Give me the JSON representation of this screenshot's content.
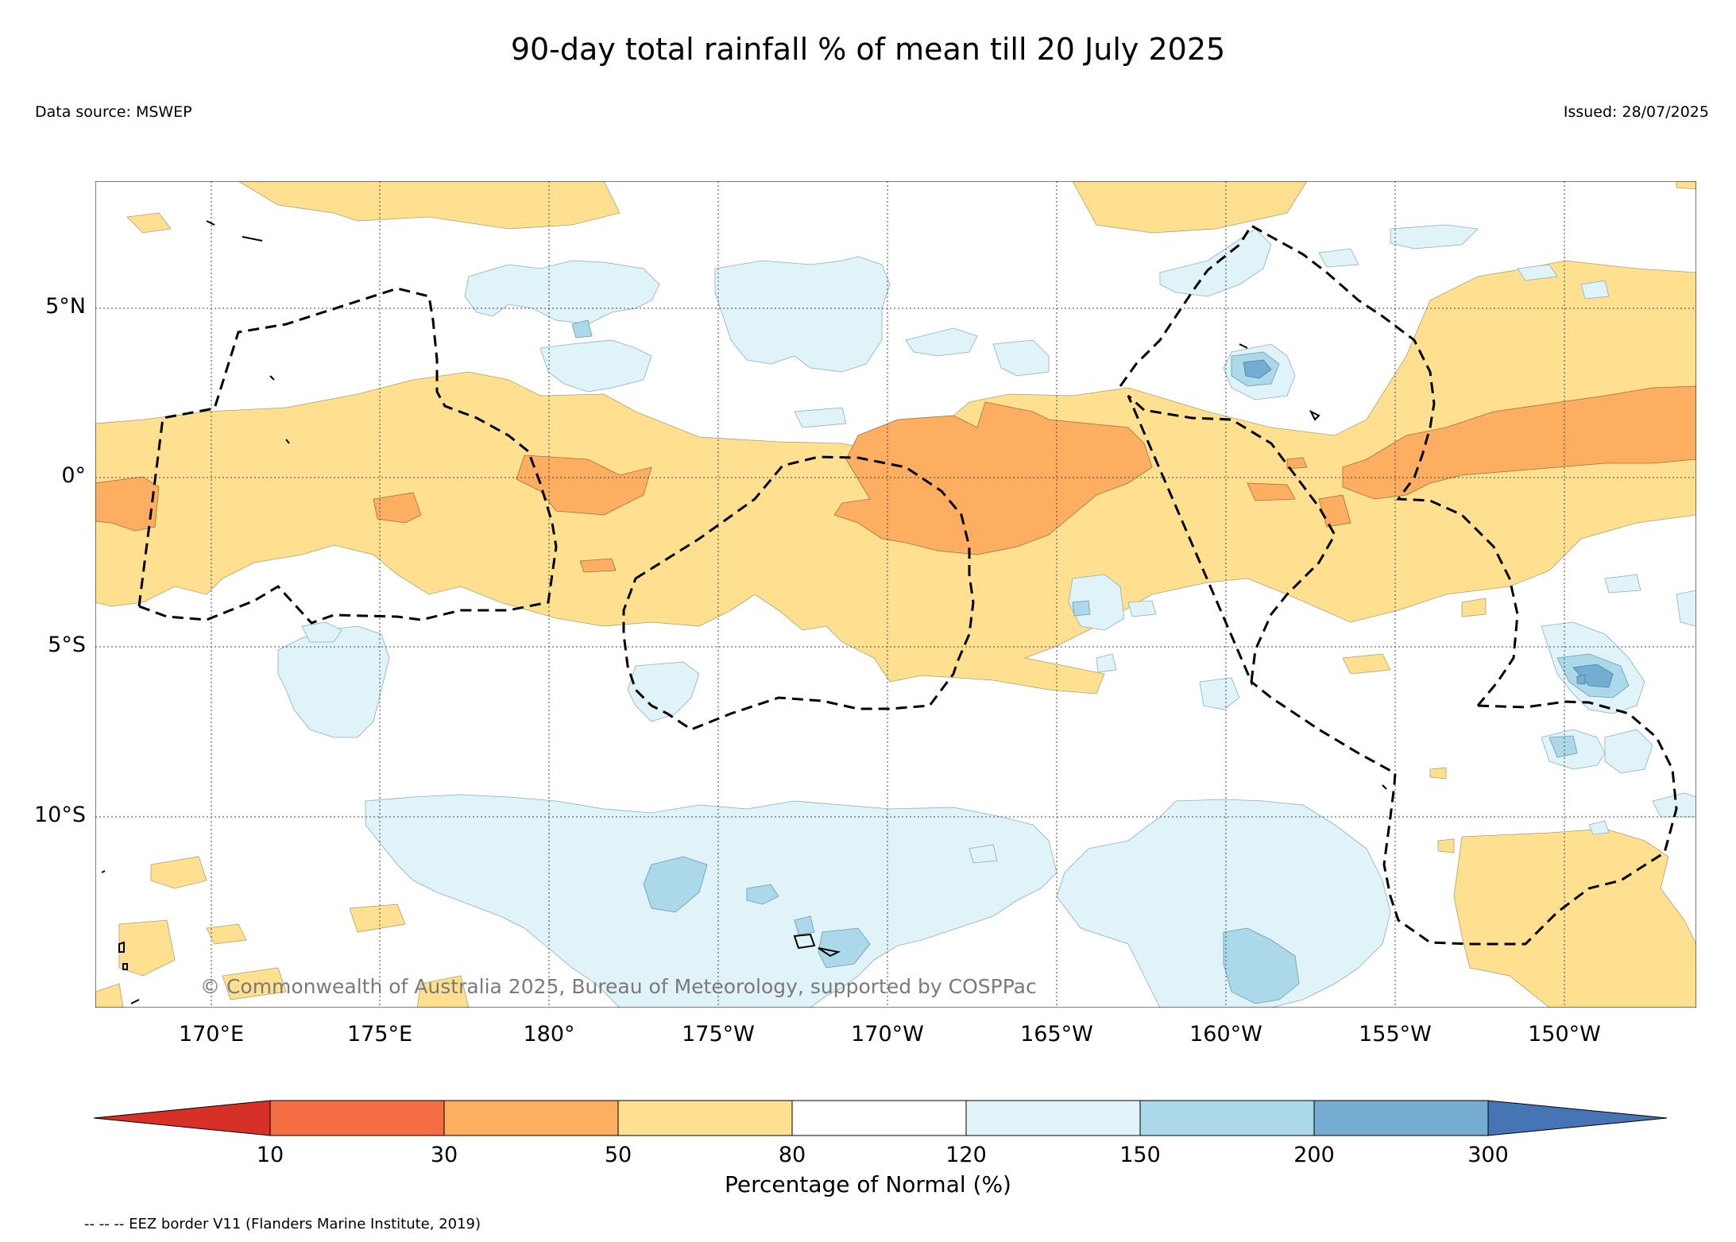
{
  "title": "90-day total rainfall % of mean till 20 July 2025",
  "data_source": "Data source: MSWEP",
  "issued": "Issued: 28/07/2025",
  "copyright": "© Commonwealth of Australia 2025, Bureau of Meteorology, supported by COSPPac",
  "eez_note": "-- -- -- EEZ border V11 (Flanders Marine Institute, 2019)",
  "map": {
    "lat_labels": [
      "5°N",
      "0°",
      "5°S",
      "10°S"
    ],
    "lon_labels": [
      "170°E",
      "175°E",
      "180°",
      "175°W",
      "170°W",
      "165°W",
      "160°W",
      "155°W",
      "150°W"
    ],
    "grid": true
  },
  "colorbar": {
    "label": "Percentage of Normal (%)",
    "ticks": [
      "10",
      "30",
      "50",
      "80",
      "120",
      "150",
      "200",
      "300"
    ],
    "colors": {
      "lt10": "#d73027",
      "10-30": "#f46d43",
      "30-50": "#fdae61",
      "50-80": "#fee090",
      "80-120": "#ffffff",
      "120-150": "#e0f3f8",
      "150-200": "#abd9e9",
      "200-300": "#74add1",
      "gt300": "#4575b4"
    }
  }
}
